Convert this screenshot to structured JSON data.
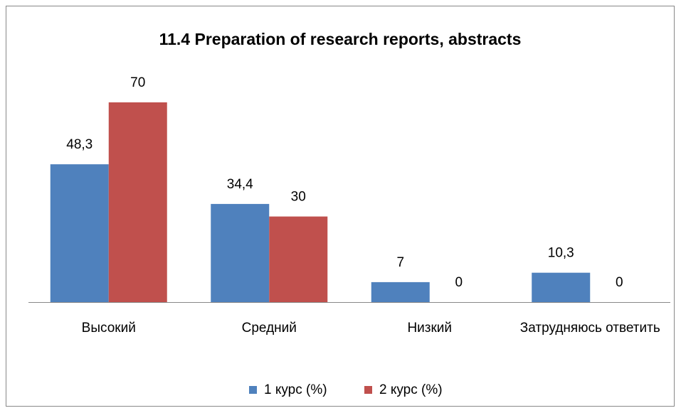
{
  "chart_data": {
    "type": "bar",
    "title": "11.4 Preparation of research reports, abstracts",
    "categories": [
      "Высокий",
      "Средний",
      "Низкий",
      "Затрудняюсь ответить"
    ],
    "series": [
      {
        "name": "1 курс (%)",
        "color": "#4f81bd",
        "values": [
          48.3,
          34.4,
          7,
          10.3
        ],
        "value_labels": [
          "48,3",
          "34,4",
          "7",
          "10,3"
        ]
      },
      {
        "name": "2 курс (%)",
        "color": "#c0504d",
        "values": [
          70,
          30,
          0,
          0
        ],
        "value_labels": [
          "70",
          "30",
          "0",
          "0"
        ]
      }
    ],
    "legend": "bottom"
  }
}
